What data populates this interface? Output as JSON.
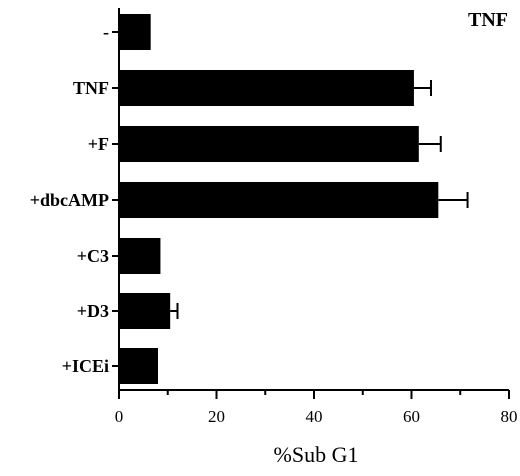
{
  "chart_data": {
    "type": "bar",
    "orientation": "horizontal",
    "title": "TNF",
    "xlabel": "%Sub G1",
    "ylabel": "",
    "categories": [
      "-",
      "TNF",
      "+F",
      "+dbcAMP",
      "+C3",
      "+D3",
      "+ICEi"
    ],
    "values": [
      6.5,
      60.5,
      61.5,
      65.5,
      8.5,
      10.5,
      8
    ],
    "errors": [
      0,
      3.5,
      4.5,
      6,
      0,
      1.5,
      0
    ],
    "xlim": [
      0,
      80
    ],
    "xticks": [
      "0",
      "20",
      "40",
      "60",
      "80"
    ],
    "bar_color": "#000000",
    "legend": "none",
    "grid": false
  }
}
